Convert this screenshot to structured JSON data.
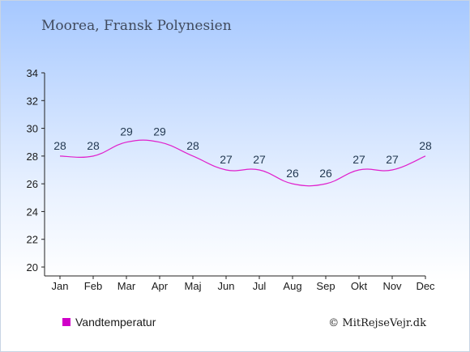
{
  "chart_data": {
    "type": "line",
    "title": "Moorea, Fransk Polynesien",
    "categories": [
      "Jan",
      "Feb",
      "Mar",
      "Apr",
      "Maj",
      "Jun",
      "Jul",
      "Aug",
      "Sep",
      "Okt",
      "Nov",
      "Dec"
    ],
    "series": [
      {
        "name": "Vandtemperatur",
        "values": [
          28,
          28,
          29,
          29,
          28,
          27,
          27,
          26,
          26,
          27,
          27,
          28
        ]
      }
    ],
    "ylim": [
      20,
      34
    ],
    "yticks": [
      20,
      22,
      24,
      26,
      28,
      30,
      32,
      34
    ],
    "grid": false,
    "legend_position": "bottom-left",
    "colors": {
      "line": "#e020cc",
      "legend_marker": "#d000c8",
      "background_top": "#a6c8ff",
      "background_bottom": "#ffffff",
      "title": "#404a5c",
      "data_label": "#243a52"
    }
  },
  "credit": "© MitRejseVejr.dk"
}
